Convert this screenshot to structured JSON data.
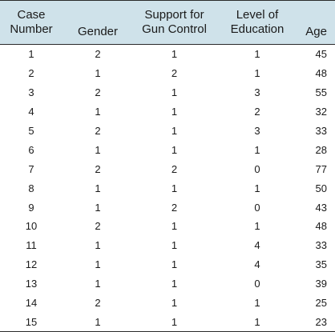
{
  "table": {
    "headers": [
      {
        "line1": "Case",
        "line2": "Number"
      },
      {
        "line1": "",
        "line2": "Gender"
      },
      {
        "line1": "Support for",
        "line2": "Gun Control"
      },
      {
        "line1": "Level of",
        "line2": "Education"
      },
      {
        "line1": "",
        "line2": "Age"
      }
    ],
    "header_background": "#cfe2ea",
    "rows": [
      [
        "1",
        "2",
        "1",
        "1",
        "45"
      ],
      [
        "2",
        "1",
        "2",
        "1",
        "48"
      ],
      [
        "3",
        "2",
        "1",
        "3",
        "55"
      ],
      [
        "4",
        "1",
        "1",
        "2",
        "32"
      ],
      [
        "5",
        "2",
        "1",
        "3",
        "33"
      ],
      [
        "6",
        "1",
        "1",
        "1",
        "28"
      ],
      [
        "7",
        "2",
        "2",
        "0",
        "77"
      ],
      [
        "8",
        "1",
        "1",
        "1",
        "50"
      ],
      [
        "9",
        "1",
        "2",
        "0",
        "43"
      ],
      [
        "10",
        "2",
        "1",
        "1",
        "48"
      ],
      [
        "11",
        "1",
        "1",
        "4",
        "33"
      ],
      [
        "12",
        "1",
        "1",
        "4",
        "35"
      ],
      [
        "13",
        "1",
        "1",
        "0",
        "39"
      ],
      [
        "14",
        "2",
        "1",
        "1",
        "25"
      ],
      [
        "15",
        "1",
        "1",
        "1",
        "23"
      ]
    ]
  }
}
